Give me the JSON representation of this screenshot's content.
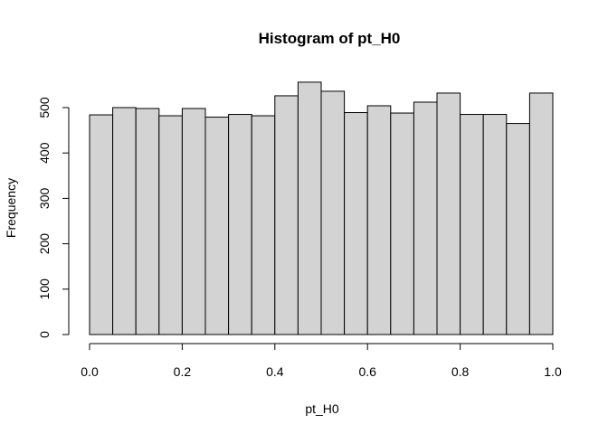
{
  "chart_data": {
    "type": "bar",
    "title": "Histogram of pt_H0",
    "xlabel": "pt_H0",
    "ylabel": "Frequency",
    "bin_edges": [
      0.0,
      0.05,
      0.1,
      0.15,
      0.2,
      0.25,
      0.3,
      0.35,
      0.4,
      0.45,
      0.5,
      0.55,
      0.6,
      0.65,
      0.7,
      0.75,
      0.8,
      0.85,
      0.9,
      0.95,
      1.0
    ],
    "values": [
      484,
      500,
      498,
      482,
      498,
      479,
      485,
      482,
      526,
      556,
      536,
      489,
      504,
      488,
      512,
      532,
      485,
      485,
      465,
      532
    ],
    "xlim": [
      0.0,
      1.0
    ],
    "ylim": [
      0,
      556
    ],
    "xticks": [
      0.0,
      0.2,
      0.4,
      0.6,
      0.8,
      1.0
    ],
    "xtick_labels": [
      "0.0",
      "0.2",
      "0.4",
      "0.6",
      "0.8",
      "1.0"
    ],
    "yticks": [
      0,
      100,
      200,
      300,
      400,
      500
    ],
    "ytick_labels": [
      "0",
      "100",
      "200",
      "300",
      "400",
      "500"
    ],
    "bar_color": "#d3d3d3",
    "grid": false,
    "legend": "none"
  }
}
